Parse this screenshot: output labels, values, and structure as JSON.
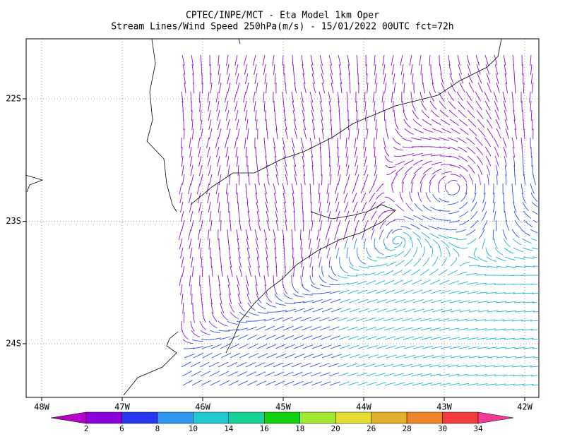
{
  "header": {
    "title": "CPTEC/INPE/MCT -  Eta Model 1km Oper",
    "subtitle": "Stream Lines/Wind Speed 250hPa(m/s) - 15/01/2022 00UTC fct=72h"
  },
  "map": {
    "lat_labels": [
      "22S",
      "23S",
      "24S"
    ],
    "lon_labels": [
      "48W",
      "47W",
      "46W",
      "45W",
      "44W",
      "43W",
      "42W"
    ]
  },
  "colorbar": {
    "levels": [
      2,
      6,
      8,
      10,
      14,
      16,
      18,
      20,
      26,
      28,
      30,
      34
    ],
    "colors": [
      "#b400c8",
      "#8c00dc",
      "#2838f0",
      "#3096f0",
      "#20c8d2",
      "#18d296",
      "#10d210",
      "#a0e632",
      "#e6dc32",
      "#e6af2d",
      "#f08228",
      "#f03c3c",
      "#f03c96"
    ]
  }
}
